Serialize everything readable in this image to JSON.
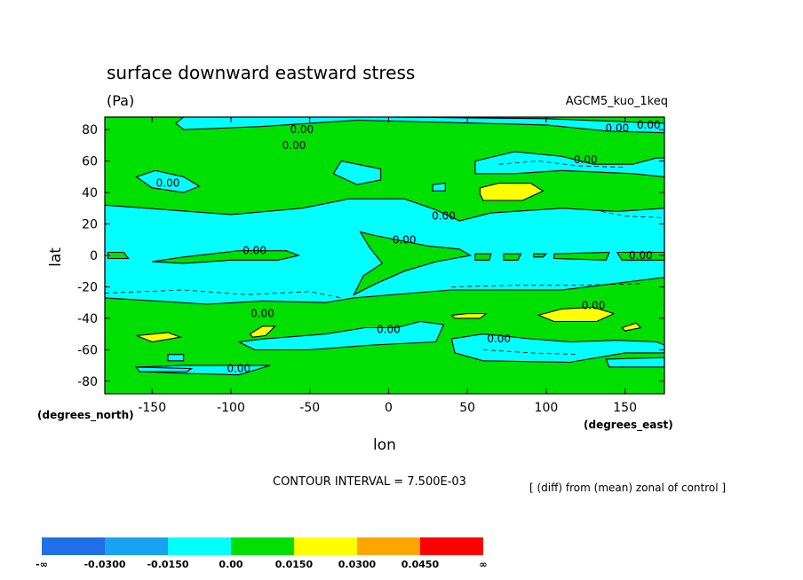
{
  "chart_data": {
    "type": "heatmap",
    "title": "surface downward eastward stress",
    "units": "(Pa)",
    "experiment": "AGCM5_kuo_1keq",
    "xlabel": "lon",
    "ylabel": "lat",
    "x_units": "(degrees_east)",
    "y_units": "(degrees_north)",
    "xlim": [
      -180,
      175
    ],
    "ylim": [
      -88,
      88
    ],
    "x_ticks": [
      "-150",
      "-100",
      "-50",
      "0",
      "50",
      "100",
      "150"
    ],
    "y_ticks": [
      "80",
      "60",
      "40",
      "20",
      "0",
      "-20",
      "-40",
      "-60",
      "-80"
    ],
    "contour_interval_text": "CONTOUR INTERVAL = 7.500E-03",
    "comparison_note": "[ (diff) from (mean) zonal of control ]",
    "contour_label": "0.00",
    "contour_label_positions": [
      [
        -55,
        80
      ],
      [
        -60,
        70
      ],
      [
        -140,
        46
      ],
      [
        145,
        81
      ],
      [
        165,
        83
      ],
      [
        125,
        61
      ],
      [
        35,
        25
      ],
      [
        10,
        10
      ],
      [
        -85,
        3
      ],
      [
        160,
        0
      ],
      [
        130,
        -32
      ],
      [
        -80,
        -37
      ],
      [
        0,
        -47
      ],
      [
        70,
        -53
      ],
      [
        -95,
        -72
      ]
    ],
    "colorbar": {
      "levels": [
        "-∞",
        "-0.0300",
        "-0.0150",
        "0.00",
        "0.0150",
        "0.0300",
        "0.0450",
        "∞"
      ],
      "colors": [
        "#1f6fe6",
        "#19a2f0",
        "#00ffff",
        "#00e000",
        "#ffff00",
        "#ffa500",
        "#ff0000"
      ]
    },
    "regions": [
      {
        "level": "0.00 to 0.0150",
        "color": "#00e000",
        "polygon": [
          [
            -180,
            88
          ],
          [
            175,
            88
          ],
          [
            175,
            -88
          ],
          [
            -180,
            -88
          ]
        ]
      },
      {
        "level": "-0.0150 to 0.00",
        "color": "#00ffff",
        "polygon": [
          [
            -130,
            80
          ],
          [
            -80,
            82
          ],
          [
            -20,
            86
          ],
          [
            60,
            84
          ],
          [
            100,
            83
          ],
          [
            140,
            79
          ],
          [
            175,
            78
          ],
          [
            175,
            84
          ],
          [
            100,
            87
          ],
          [
            0,
            88
          ],
          [
            -130,
            88
          ],
          [
            -135,
            84
          ]
        ]
      },
      {
        "level": "-0.0150 to 0.00",
        "color": "#00ffff",
        "polygon": [
          [
            -180,
            32
          ],
          [
            -100,
            26
          ],
          [
            -55,
            30
          ],
          [
            -25,
            36
          ],
          [
            10,
            36
          ],
          [
            30,
            29
          ],
          [
            45,
            22
          ],
          [
            65,
            27
          ],
          [
            110,
            30
          ],
          [
            145,
            28
          ],
          [
            175,
            30
          ],
          [
            175,
            -14
          ],
          [
            110,
            -22
          ],
          [
            40,
            -22
          ],
          [
            15,
            -24
          ],
          [
            -22,
            -27
          ],
          [
            -40,
            -30
          ],
          [
            -80,
            -29
          ],
          [
            -115,
            -31
          ],
          [
            -180,
            -27
          ]
        ]
      },
      {
        "level": "0.00 to 0.0150",
        "color": "#00e000",
        "polygon": [
          [
            -18,
            15
          ],
          [
            -10,
            13
          ],
          [
            25,
            6
          ],
          [
            45,
            4
          ],
          [
            52,
            0
          ],
          [
            30,
            -4
          ],
          [
            10,
            -10
          ],
          [
            -8,
            -18
          ],
          [
            -22,
            -25
          ],
          [
            -16,
            -13
          ],
          [
            -4,
            -5
          ],
          [
            -12,
            5
          ]
        ]
      },
      {
        "level": "0.00 to 0.0150",
        "color": "#00e000",
        "polygon": [
          [
            -150,
            -4
          ],
          [
            -130,
            -1
          ],
          [
            -95,
            3
          ],
          [
            -65,
            3
          ],
          [
            -57,
            0
          ],
          [
            -70,
            -3
          ],
          [
            -100,
            -3
          ],
          [
            -130,
            -5
          ]
        ]
      },
      {
        "level": "0.00 to 0.0150",
        "color": "#00e000",
        "polygon": [
          [
            -178,
            2
          ],
          [
            -168,
            2
          ],
          [
            -165,
            -2
          ],
          [
            -178,
            -2
          ]
        ]
      },
      {
        "level": "0.00 to 0.0150",
        "color": "#00e000",
        "polygon": [
          [
            55,
            1
          ],
          [
            65,
            1
          ],
          [
            64,
            -3
          ],
          [
            55,
            -3
          ]
        ]
      },
      {
        "level": "0.00 to 0.0150",
        "color": "#00e000",
        "polygon": [
          [
            73,
            1
          ],
          [
            84,
            1
          ],
          [
            82,
            -3
          ],
          [
            73,
            -3
          ]
        ]
      },
      {
        "level": "0.00 to 0.0150",
        "color": "#00e000",
        "polygon": [
          [
            92,
            1
          ],
          [
            100,
            1
          ],
          [
            98,
            -1
          ],
          [
            92,
            -1
          ]
        ]
      },
      {
        "level": "0.00 to 0.0150",
        "color": "#00e000",
        "polygon": [
          [
            105,
            1
          ],
          [
            140,
            2
          ],
          [
            138,
            -3
          ],
          [
            105,
            -2
          ]
        ]
      },
      {
        "level": "0.00 to 0.0150",
        "color": "#00e000",
        "polygon": [
          [
            145,
            2
          ],
          [
            175,
            2
          ],
          [
            175,
            -3
          ],
          [
            148,
            -3
          ]
        ]
      },
      {
        "level": "-0.0150 to 0.00",
        "color": "#00ffff",
        "polygon": [
          [
            -160,
            50
          ],
          [
            -148,
            54
          ],
          [
            -130,
            50
          ],
          [
            -120,
            44
          ],
          [
            -130,
            40
          ],
          [
            -150,
            43
          ]
        ]
      },
      {
        "level": "-0.0150 to 0.00",
        "color": "#00ffff",
        "polygon": [
          [
            -30,
            60
          ],
          [
            -5,
            55
          ],
          [
            -5,
            48
          ],
          [
            -20,
            45
          ],
          [
            -35,
            52
          ]
        ]
      },
      {
        "level": "-0.0150 to 0.00",
        "color": "#00ffff",
        "polygon": [
          [
            55,
            60
          ],
          [
            80,
            66
          ],
          [
            110,
            63
          ],
          [
            130,
            58
          ],
          [
            155,
            58
          ],
          [
            170,
            62
          ],
          [
            175,
            62
          ],
          [
            175,
            50
          ],
          [
            155,
            52
          ],
          [
            110,
            54
          ],
          [
            80,
            52
          ],
          [
            55,
            52
          ]
        ]
      },
      {
        "level": "-0.0150 to 0.00",
        "color": "#00ffff",
        "polygon": [
          [
            28,
            45
          ],
          [
            36,
            46
          ],
          [
            36,
            41
          ],
          [
            28,
            41
          ]
        ]
      },
      {
        "level": "0.0150 to 0.0300",
        "color": "#ffff00",
        "polygon": [
          [
            58,
            43
          ],
          [
            70,
            46
          ],
          [
            90,
            46
          ],
          [
            98,
            41
          ],
          [
            85,
            35
          ],
          [
            60,
            35
          ],
          [
            58,
            39
          ]
        ]
      },
      {
        "level": "-0.0150 to 0.00",
        "color": "#00ffff",
        "polygon": [
          [
            -95,
            -55
          ],
          [
            -78,
            -53
          ],
          [
            -40,
            -50
          ],
          [
            -15,
            -46
          ],
          [
            5,
            -46
          ],
          [
            20,
            -42
          ],
          [
            35,
            -44
          ],
          [
            30,
            -55
          ],
          [
            -10,
            -57
          ],
          [
            -50,
            -60
          ],
          [
            -85,
            -60
          ]
        ]
      },
      {
        "level": "-0.0150 to 0.00",
        "color": "#00ffff",
        "polygon": [
          [
            40,
            -53
          ],
          [
            60,
            -50
          ],
          [
            90,
            -53
          ],
          [
            115,
            -55
          ],
          [
            145,
            -54
          ],
          [
            170,
            -55
          ],
          [
            175,
            -57
          ],
          [
            175,
            -62
          ],
          [
            150,
            -62
          ],
          [
            115,
            -68
          ],
          [
            60,
            -67
          ],
          [
            42,
            -62
          ]
        ]
      },
      {
        "level": "-0.0150 to 0.00",
        "color": "#00ffff",
        "polygon": [
          [
            -160,
            -71
          ],
          [
            -130,
            -70
          ],
          [
            -100,
            -70
          ],
          [
            -75,
            -70
          ],
          [
            -95,
            -76
          ],
          [
            -130,
            -75
          ],
          [
            -155,
            -74
          ]
        ]
      },
      {
        "level": "-0.0150 to 0.00",
        "color": "#00ffff",
        "polygon": [
          [
            -160,
            -71
          ],
          [
            -125,
            -72
          ],
          [
            -128,
            -74
          ],
          [
            -158,
            -74
          ]
        ]
      },
      {
        "level": "-0.0150 to 0.00",
        "color": "#00ffff",
        "polygon": [
          [
            -140,
            -63
          ],
          [
            -130,
            -63
          ],
          [
            -130,
            -67
          ],
          [
            -140,
            -67
          ]
        ]
      },
      {
        "level": "-0.0150 to 0.00",
        "color": "#00ffff",
        "polygon": [
          [
            138,
            -66
          ],
          [
            175,
            -65
          ],
          [
            175,
            -71
          ],
          [
            140,
            -71
          ]
        ]
      },
      {
        "level": "0.0150 to 0.0300",
        "color": "#ffff00",
        "polygon": [
          [
            -160,
            -51
          ],
          [
            -140,
            -49
          ],
          [
            -132,
            -52
          ],
          [
            -150,
            -55
          ]
        ]
      },
      {
        "level": "0.0150 to 0.0300",
        "color": "#ffff00",
        "polygon": [
          [
            -88,
            -50
          ],
          [
            -80,
            -45
          ],
          [
            -72,
            -45
          ],
          [
            -78,
            -51
          ],
          [
            -86,
            -52
          ]
        ]
      },
      {
        "level": "0.0150 to 0.0300",
        "color": "#ffff00",
        "polygon": [
          [
            40,
            -38
          ],
          [
            50,
            -37
          ],
          [
            62,
            -37
          ],
          [
            58,
            -40
          ],
          [
            42,
            -40
          ]
        ]
      },
      {
        "level": "0.0150 to 0.0300",
        "color": "#ffff00",
        "polygon": [
          [
            95,
            -38
          ],
          [
            110,
            -34
          ],
          [
            130,
            -33
          ],
          [
            143,
            -37
          ],
          [
            132,
            -42
          ],
          [
            105,
            -42
          ]
        ]
      },
      {
        "level": "0.0150 to 0.0300",
        "color": "#ffff00",
        "polygon": [
          [
            148,
            -46
          ],
          [
            157,
            -43
          ],
          [
            160,
            -46
          ],
          [
            150,
            -48
          ]
        ]
      }
    ]
  }
}
